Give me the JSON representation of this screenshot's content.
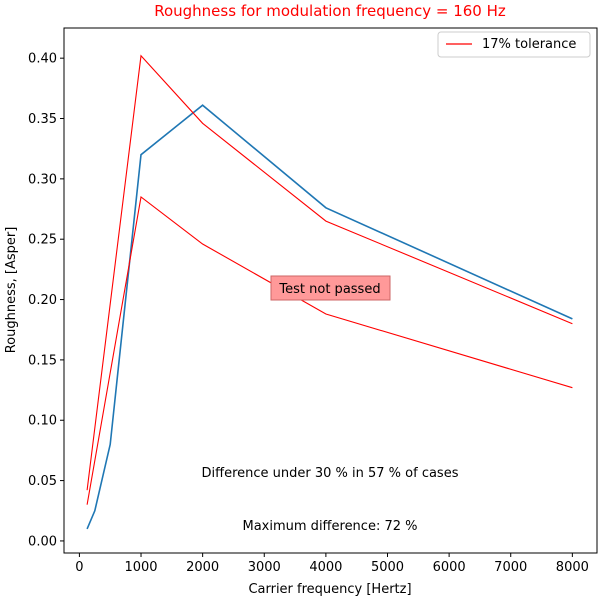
{
  "chart_data": {
    "type": "line",
    "title": "Roughness for modulation frequency = 160 Hz",
    "xlabel": "Carrier frequency [Hertz]",
    "ylabel": "Roughness, [Asper]",
    "xlim": [
      -250,
      8400
    ],
    "ylim": [
      -0.01,
      0.425
    ],
    "xticks": [
      0,
      1000,
      2000,
      3000,
      4000,
      5000,
      6000,
      7000,
      8000
    ],
    "xtick_labels": [
      "0",
      "1000",
      "2000",
      "3000",
      "4000",
      "5000",
      "6000",
      "7000",
      "8000"
    ],
    "yticks": [
      0.0,
      0.05,
      0.1,
      0.15,
      0.2,
      0.25,
      0.3,
      0.35,
      0.4
    ],
    "ytick_labels": [
      "0.00",
      "0.05",
      "0.10",
      "0.15",
      "0.20",
      "0.25",
      "0.30",
      "0.35",
      "0.40"
    ],
    "series": [
      {
        "color": "#1f77b4",
        "x": [
          125,
          250,
          500,
          1000,
          2000,
          4000,
          8000
        ],
        "y": [
          0.01,
          0.025,
          0.08,
          0.32,
          0.361,
          0.276,
          0.184
        ]
      },
      {
        "name": "17% tolerance",
        "color": "#ff0000",
        "x": [
          125,
          1000,
          2000,
          4000,
          8000
        ],
        "y": [
          0.042,
          0.402,
          0.346,
          0.265,
          0.18
        ]
      },
      {
        "color": "#ff0000",
        "x": [
          125,
          1000,
          2000,
          4000,
          8000
        ],
        "y": [
          0.03,
          0.285,
          0.246,
          0.188,
          0.127
        ]
      }
    ],
    "legend": {
      "position": "top-right",
      "entries": [
        "17% tolerance"
      ]
    },
    "grid": false,
    "annotations": {
      "status": "Test not passed",
      "difference": "Difference under 30 % in 57 % of cases",
      "maximum": "Maximum difference: 72 %"
    },
    "colors": {
      "title": "#ff0000",
      "status_box": "#ff9999",
      "status_border": "#cc6666"
    }
  }
}
